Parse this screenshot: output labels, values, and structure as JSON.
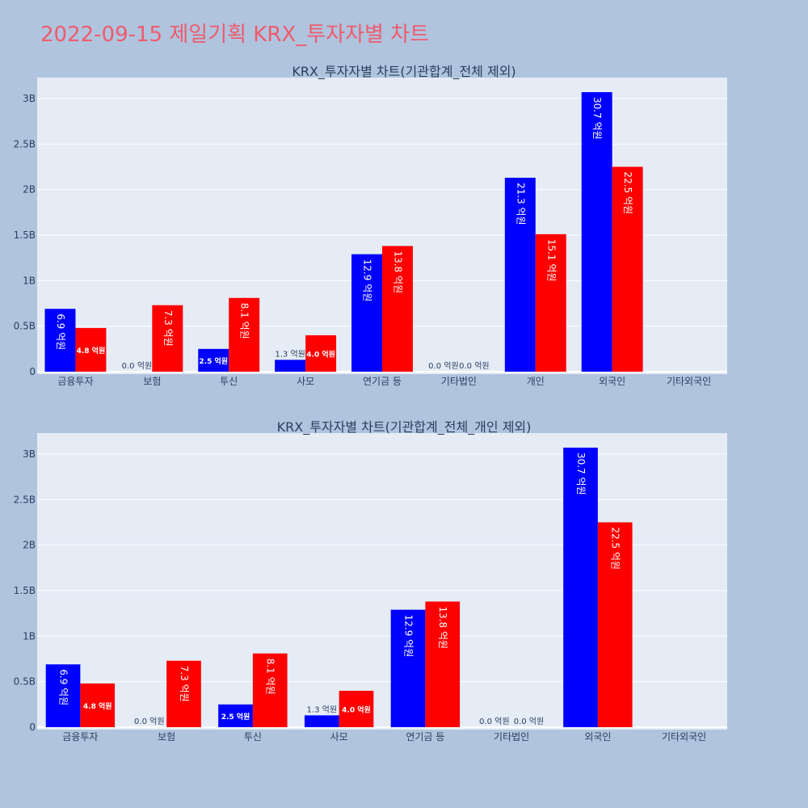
{
  "page_title": "2022-09-15 제일기획 KRX_투자자별 차트",
  "colors": {
    "background": "#b0c4de",
    "plot_bg": "#e5ecf6",
    "series_a": "#0000ff",
    "series_b": "#ff0000",
    "title": "#ef5b6e",
    "text": "#2a3f5f"
  },
  "chart_data": [
    {
      "type": "bar",
      "title": "KRX_투자자별 차트(기관합계_전체 제외)",
      "categories": [
        "금융투자",
        "보험",
        "투신",
        "사모",
        "연기금 등",
        "기타법인",
        "개인",
        "외국인",
        "기타외국인"
      ],
      "series": [
        {
          "values": [
            690000000,
            0,
            250000000,
            130000000,
            1290000000,
            0,
            2130000000,
            3070000000,
            null
          ],
          "labels": [
            "6.9 억원",
            "0.0 억원",
            "2.5 억원",
            "1.3 억원",
            "12.9 억원",
            "0.0 억원",
            "21.3 억원",
            "30.7 억원",
            ""
          ]
        },
        {
          "values": [
            480000000,
            730000000,
            810000000,
            400000000,
            1380000000,
            0,
            1510000000,
            2250000000,
            null
          ],
          "labels": [
            "4.8 억원",
            "7.3 억원",
            "8.1 억원",
            "4.0 억원",
            "13.8 억원",
            "0.0 억원",
            "15.1 억원",
            "22.5 억원",
            ""
          ]
        }
      ],
      "yticks": [
        "0",
        "0.5B",
        "1B",
        "1.5B",
        "2B",
        "2.5B",
        "3B"
      ],
      "ylim": [
        0,
        3230000000
      ],
      "grid": true
    },
    {
      "type": "bar",
      "title": "KRX_투자자별 차트(기관합계_전체_개인 제외)",
      "categories": [
        "금융투자",
        "보험",
        "투신",
        "사모",
        "연기금 등",
        "기타법인",
        "외국인",
        "기타외국인"
      ],
      "series": [
        {
          "values": [
            690000000,
            0,
            250000000,
            130000000,
            1290000000,
            0,
            3070000000,
            null
          ],
          "labels": [
            "6.9 억원",
            "0.0 억원",
            "2.5 억원",
            "1.3 억원",
            "12.9 억원",
            "0.0 억원",
            "30.7 억원",
            ""
          ]
        },
        {
          "values": [
            480000000,
            730000000,
            810000000,
            400000000,
            1380000000,
            0,
            2250000000,
            null
          ],
          "labels": [
            "4.8 억원",
            "7.3 억원",
            "8.1 억원",
            "4.0 억원",
            "13.8 억원",
            "0.0 억원",
            "22.5 억원",
            ""
          ]
        }
      ],
      "yticks": [
        "0",
        "0.5B",
        "1B",
        "1.5B",
        "2B",
        "2.5B",
        "3B"
      ],
      "ylim": [
        0,
        3230000000
      ],
      "grid": true
    }
  ]
}
